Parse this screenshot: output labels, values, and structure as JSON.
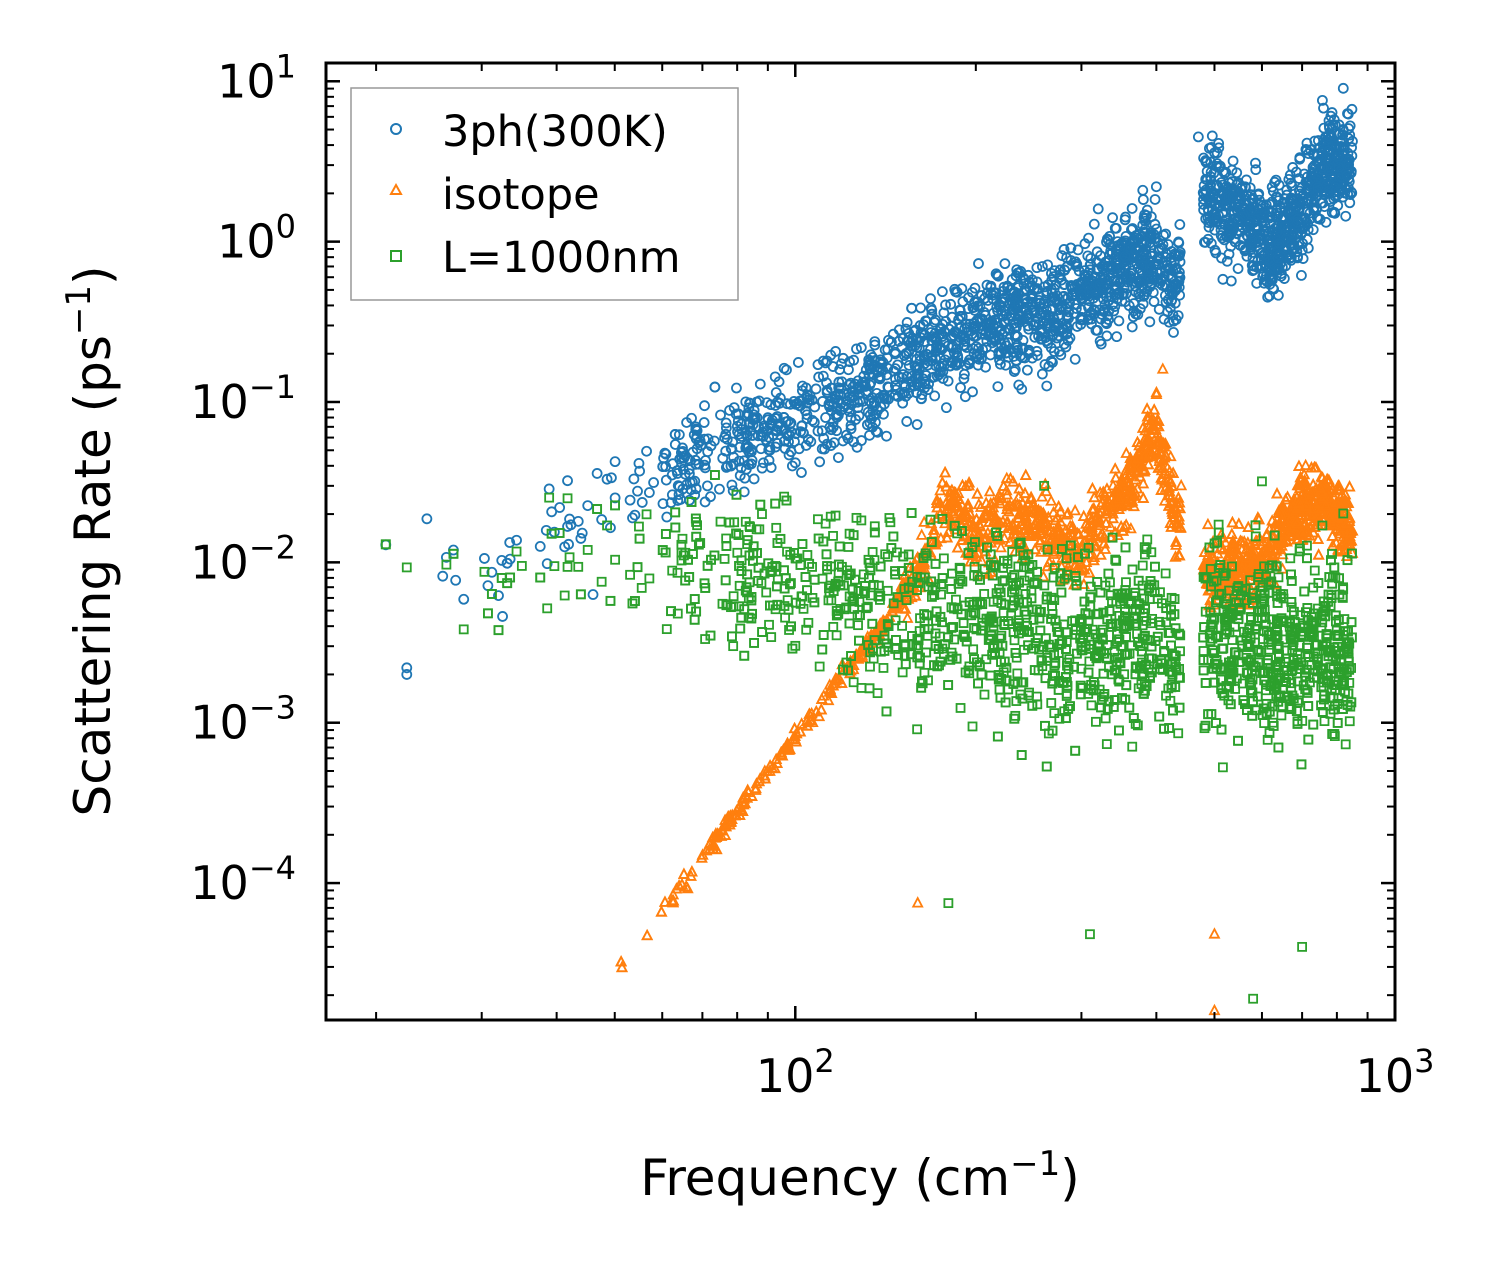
{
  "chart_data": {
    "type": "scatter",
    "title": "",
    "xlabel": "Frequency (cm",
    "xlabel_sup": "−1",
    "xlabel_tail": ")",
    "ylabel": "Scattering Rate (ps",
    "ylabel_sup": "−1",
    "ylabel_tail": ")",
    "xscale": "log",
    "yscale": "log",
    "xlim": [
      16.5,
      1000
    ],
    "ylim": [
      1.4e-05,
      13
    ],
    "x_tick_labels": [
      {
        "value": 100,
        "base": "10",
        "exp": "2"
      },
      {
        "value": 1000,
        "base": "10",
        "exp": "3"
      }
    ],
    "y_tick_labels": [
      {
        "value": 10,
        "base": "10",
        "exp": "1"
      },
      {
        "value": 1,
        "base": "10",
        "exp": "0"
      },
      {
        "value": 0.1,
        "base": "10",
        "exp": "−1"
      },
      {
        "value": 0.01,
        "base": "10",
        "exp": "−2"
      },
      {
        "value": 0.001,
        "base": "10",
        "exp": "−3"
      },
      {
        "value": 0.0001,
        "base": "10",
        "exp": "−4"
      }
    ],
    "legend_position": "top-left",
    "series": [
      {
        "name": "3ph(300K)",
        "marker": "circle",
        "color": "#1f77b4",
        "trend": [
          [
            19.5,
            0.0085
          ],
          [
            27,
            0.011
          ],
          [
            34,
            0.013
          ],
          [
            45,
            0.02
          ],
          [
            60,
            0.035
          ],
          [
            80,
            0.06
          ],
          [
            100,
            0.08
          ],
          [
            130,
            0.12
          ],
          [
            170,
            0.22
          ],
          [
            210,
            0.3
          ],
          [
            260,
            0.35
          ],
          [
            300,
            0.45
          ],
          [
            350,
            0.7
          ],
          [
            400,
            0.8
          ],
          [
            430,
            0.5
          ],
          [
            480,
            2.0
          ],
          [
            560,
            1.5
          ],
          [
            620,
            0.9
          ],
          [
            700,
            1.6
          ],
          [
            760,
            3.0
          ],
          [
            850,
            3.2
          ]
        ],
        "spread": 0.5,
        "outliers": [
          [
            22.5,
            0.0022
          ],
          [
            22.5,
            0.002
          ],
          [
            32.5,
            0.0046
          ],
          [
            46,
            0.0063
          ],
          [
            118,
            0.045
          ],
          [
            400,
            2.2
          ],
          [
            760,
            6.8
          ],
          [
            320,
            1.6
          ],
          [
            470,
            4.5
          ]
        ]
      },
      {
        "name": "isotope",
        "marker": "triangle",
        "color": "#ff7f0e",
        "trend": [
          [
            45,
            1.7e-05
          ],
          [
            55,
            4e-05
          ],
          [
            65,
            0.0001
          ],
          [
            80,
            0.00028
          ],
          [
            100,
            0.0008
          ],
          [
            120,
            0.002
          ],
          [
            140,
            0.004
          ],
          [
            160,
            0.009
          ],
          [
            180,
            0.025
          ],
          [
            200,
            0.015
          ],
          [
            230,
            0.02
          ],
          [
            270,
            0.015
          ],
          [
            300,
            0.012
          ],
          [
            330,
            0.02
          ],
          [
            360,
            0.03
          ],
          [
            400,
            0.07
          ],
          [
            430,
            0.02
          ],
          [
            500,
            0.008
          ],
          [
            600,
            0.01
          ],
          [
            680,
            0.02
          ],
          [
            760,
            0.025
          ],
          [
            850,
            0.015
          ]
        ],
        "spread": 0.35,
        "outliers": [
          [
            410,
            0.16
          ],
          [
            160,
            7.5e-05
          ],
          [
            500,
            4.8e-05
          ],
          [
            500,
            1.6e-05
          ],
          [
            440,
            0.03
          ],
          [
            830,
            0.012
          ]
        ]
      },
      {
        "name": "L=1000nm",
        "marker": "square",
        "color": "#2ca02c",
        "trend": [
          [
            19.5,
            0.007
          ],
          [
            27,
            0.01
          ],
          [
            34,
            0.011
          ],
          [
            45,
            0.01
          ],
          [
            60,
            0.01
          ],
          [
            80,
            0.009
          ],
          [
            100,
            0.008
          ],
          [
            130,
            0.006
          ],
          [
            170,
            0.005
          ],
          [
            230,
            0.004
          ],
          [
            300,
            0.003
          ],
          [
            400,
            0.004
          ],
          [
            440,
            0.002
          ],
          [
            500,
            0.004
          ],
          [
            600,
            0.003
          ],
          [
            700,
            0.003
          ],
          [
            850,
            0.003
          ]
        ],
        "spread": 0.75,
        "outliers": [
          [
            22.5,
            0.0093
          ],
          [
            35,
            0.0095
          ],
          [
            88,
            0.02
          ],
          [
            180,
            7.5e-05
          ],
          [
            310,
            4.8e-05
          ],
          [
            580,
            1.9e-05
          ],
          [
            700,
            4e-05
          ],
          [
            260,
            0.03
          ],
          [
            600,
            0.032
          ]
        ]
      }
    ]
  }
}
